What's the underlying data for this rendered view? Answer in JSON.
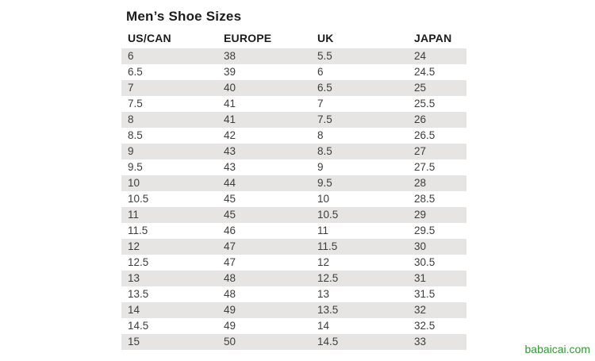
{
  "title": "Men’s Shoe Sizes",
  "chart_data": {
    "type": "table",
    "title": "Men’s Shoe Sizes",
    "columns": [
      "US/CAN",
      "EUROPE",
      "UK",
      "JAPAN"
    ],
    "rows": [
      [
        "6",
        "38",
        "5.5",
        "24"
      ],
      [
        "6.5",
        "39",
        "6",
        "24.5"
      ],
      [
        "7",
        "40",
        "6.5",
        "25"
      ],
      [
        "7.5",
        "41",
        "7",
        "25.5"
      ],
      [
        "8",
        "41",
        "7.5",
        "26"
      ],
      [
        "8.5",
        "42",
        "8",
        "26.5"
      ],
      [
        "9",
        "43",
        "8.5",
        "27"
      ],
      [
        "9.5",
        "43",
        "9",
        "27.5"
      ],
      [
        "10",
        "44",
        "9.5",
        "28"
      ],
      [
        "10.5",
        "45",
        "10",
        "28.5"
      ],
      [
        "11",
        "45",
        "10.5",
        "29"
      ],
      [
        "11.5",
        "46",
        "11",
        "29.5"
      ],
      [
        "12",
        "47",
        "11.5",
        "30"
      ],
      [
        "12.5",
        "47",
        "12",
        "30.5"
      ],
      [
        "13",
        "48",
        "12.5",
        "31"
      ],
      [
        "13.5",
        "48",
        "13",
        "31.5"
      ],
      [
        "14",
        "49",
        "13.5",
        "32"
      ],
      [
        "14.5",
        "49",
        "14",
        "32.5"
      ],
      [
        "15",
        "50",
        "14.5",
        "33"
      ]
    ],
    "layout": {
      "shaded_rows": "odd",
      "header_style": "bold",
      "grid": false
    }
  },
  "watermark": {
    "text": "babaicai.com"
  },
  "colors": {
    "background": "#ffffff",
    "row_shade": "#e6e5e3",
    "row_alt": "#ffffff",
    "header_text": "#1c1c1c",
    "cell_text": "#3d3d3d",
    "watermark": "#2f9a32"
  }
}
